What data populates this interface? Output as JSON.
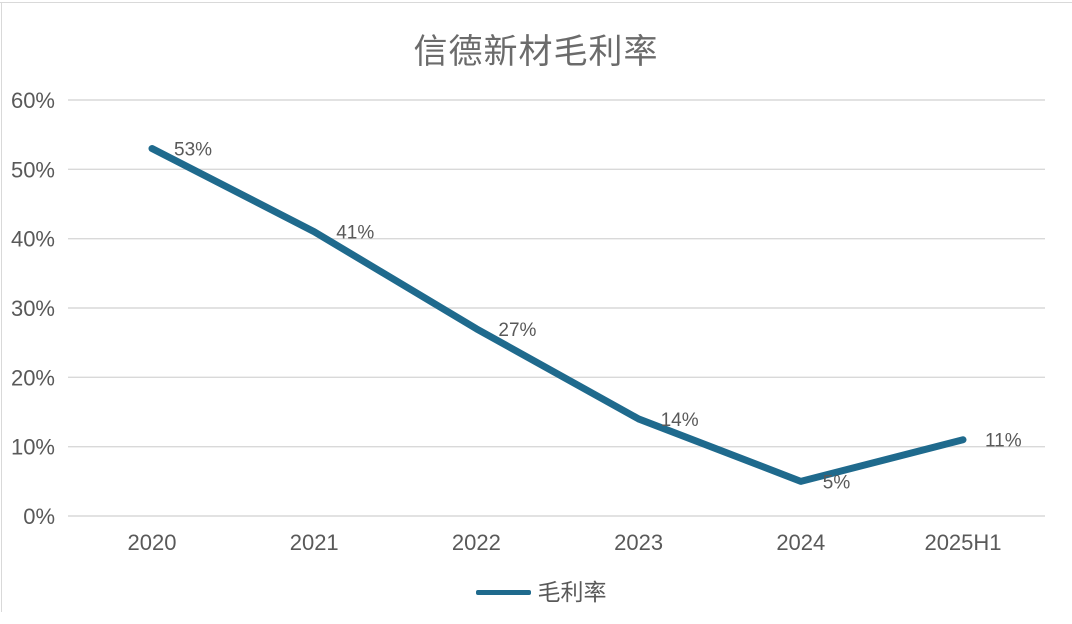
{
  "chart_data": {
    "type": "line",
    "title": "信德新材毛利率",
    "categories": [
      "2020",
      "2021",
      "2022",
      "2023",
      "2024",
      "2025H1"
    ],
    "series": [
      {
        "name": "毛利率",
        "values": [
          53,
          41,
          27,
          14,
          5,
          11
        ]
      }
    ],
    "data_labels": [
      "53%",
      "41%",
      "27%",
      "14%",
      "5%",
      "11%"
    ],
    "y_ticks": [
      "0%",
      "10%",
      "20%",
      "30%",
      "40%",
      "50%",
      "60%"
    ],
    "ylim": [
      0,
      60
    ],
    "grid": true,
    "legend_position": "bottom",
    "line_color": "#1f6a8d",
    "grid_color": "#d9d9d9",
    "border_color": "#d9d9d9",
    "text_color": "#595959",
    "title_color": "#6b6b6b"
  }
}
